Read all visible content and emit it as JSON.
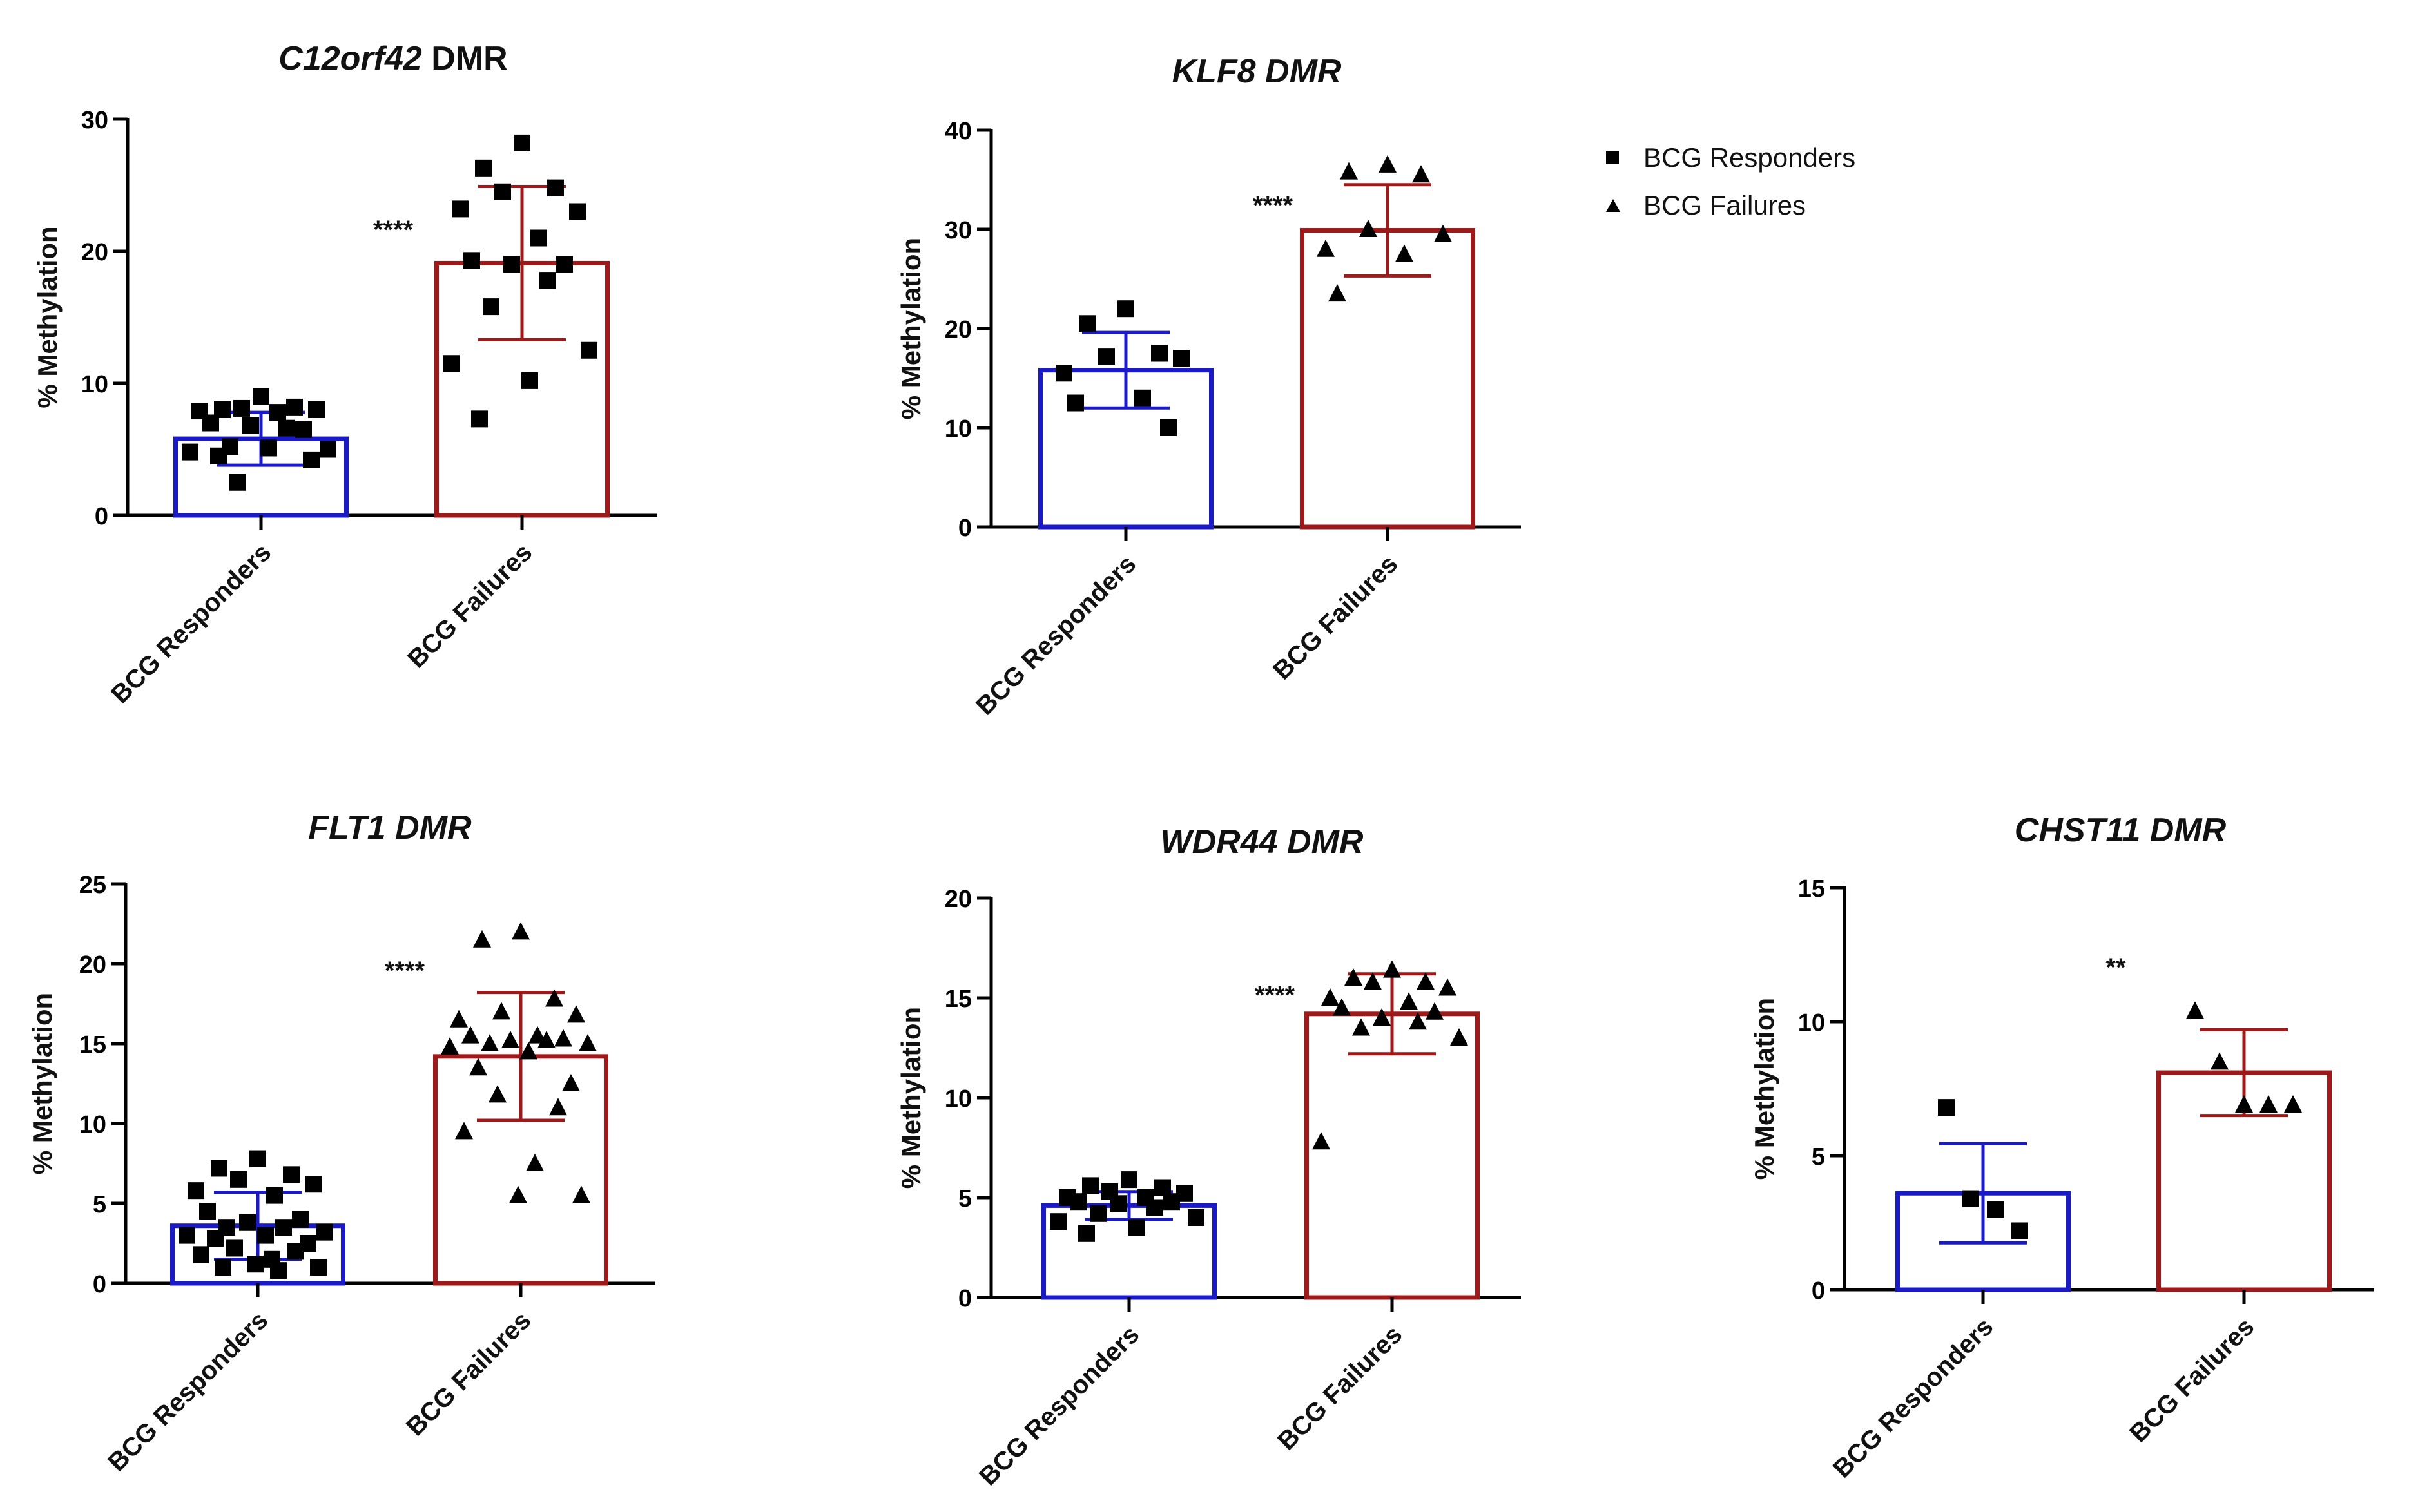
{
  "legend": {
    "responders": "BCG Responders",
    "failures": "BCG Failures"
  },
  "colors": {
    "responders": "#1a1ac8",
    "failures": "#9e1a1a",
    "axis": "#000000"
  },
  "chart_data": [
    {
      "type": "bar",
      "title_gene": "C12orf42",
      "title_suffix": " DMR",
      "title_suffix_italic": false,
      "ylabel": "% Methylation",
      "ylim": [
        0,
        30
      ],
      "yticks": [
        0,
        10,
        20,
        30
      ],
      "categories": [
        "BCG Responders",
        "BCG Failures"
      ],
      "series": [
        {
          "name": "BCG Responders",
          "marker": "square",
          "mean": 5.8,
          "sd": 2.0,
          "points": [
            9.0,
            8.0,
            8.2,
            8.1,
            8.0,
            7.9,
            7.8,
            7.0,
            6.5,
            6.8,
            6.6,
            5.2,
            5.0,
            4.8,
            5.1,
            4.5,
            4.2,
            2.5
          ]
        },
        {
          "name": "BCG Failures",
          "marker": "square",
          "mean": 19.1,
          "sd": 5.8,
          "points": [
            28.2,
            26.3,
            24.8,
            24.5,
            23.0,
            23.2,
            21.0,
            19.3,
            19.0,
            19.0,
            17.8,
            15.8,
            12.5,
            11.5,
            10.2,
            7.3
          ]
        }
      ],
      "significance": "****"
    },
    {
      "type": "bar",
      "title_gene": "KLF8",
      "title_suffix": " DMR",
      "title_suffix_italic": true,
      "ylabel": "% Methylation",
      "ylim": [
        0,
        40
      ],
      "yticks": [
        0,
        10,
        20,
        30,
        40
      ],
      "categories": [
        "BCG Responders",
        "BCG Failures"
      ],
      "series": [
        {
          "name": "BCG Responders",
          "marker": "square",
          "mean": 15.8,
          "sd": 3.8,
          "points": [
            22.0,
            20.5,
            17.5,
            17.2,
            17.0,
            15.5,
            13.0,
            12.5,
            10.0
          ]
        },
        {
          "name": "BCG Failures",
          "marker": "triangle",
          "mean": 29.9,
          "sd": 4.6,
          "points": [
            36.5,
            35.8,
            35.5,
            30.0,
            29.5,
            28.0,
            27.5,
            23.5
          ]
        }
      ],
      "significance": "****"
    },
    {
      "type": "bar",
      "title_gene": "FLT1",
      "title_suffix": "  DMR",
      "title_suffix_italic": true,
      "ylabel": "% Methylation",
      "ylim": [
        0,
        25
      ],
      "yticks": [
        0,
        5,
        10,
        15,
        20,
        25
      ],
      "categories": [
        "BCG Responders",
        "BCG Failures"
      ],
      "series": [
        {
          "name": "BCG Responders",
          "marker": "square",
          "mean": 3.6,
          "sd": 2.1,
          "points": [
            7.8,
            7.2,
            6.8,
            6.5,
            6.2,
            5.8,
            5.5,
            4.5,
            4.0,
            3.8,
            3.5,
            3.5,
            3.2,
            3.0,
            3.0,
            2.8,
            2.5,
            2.2,
            2.0,
            1.8,
            1.5,
            1.2,
            1.0,
            1.0,
            0.8
          ]
        },
        {
          "name": "BCG Failures",
          "marker": "triangle",
          "mean": 14.2,
          "sd": 4.0,
          "points": [
            22.0,
            21.5,
            17.8,
            17.0,
            16.8,
            16.5,
            15.5,
            15.5,
            15.3,
            15.2,
            15.2,
            15.0,
            15.0,
            14.8,
            14.5,
            13.5,
            12.5,
            11.8,
            11.0,
            9.5,
            7.5,
            5.5,
            5.5
          ]
        }
      ],
      "significance": "****"
    },
    {
      "type": "bar",
      "title_gene": "WDR44",
      "title_suffix": " DMR",
      "title_suffix_italic": true,
      "ylabel": "% Methylation",
      "ylim": [
        0,
        20
      ],
      "yticks": [
        0,
        5,
        10,
        15,
        20
      ],
      "categories": [
        "BCG Responders",
        "BCG Failures"
      ],
      "series": [
        {
          "name": "BCG Responders",
          "marker": "square",
          "mean": 4.6,
          "sd": 0.7,
          "points": [
            5.9,
            5.6,
            5.5,
            5.3,
            5.2,
            5.0,
            5.0,
            4.8,
            4.8,
            4.7,
            4.5,
            4.2,
            4.0,
            3.8,
            3.5,
            3.2
          ]
        },
        {
          "name": "BCG Failures",
          "marker": "triangle",
          "mean": 14.2,
          "sd": 2.0,
          "points": [
            16.4,
            16.0,
            15.8,
            15.8,
            15.5,
            15.0,
            14.8,
            14.5,
            14.3,
            14.0,
            13.8,
            13.5,
            13.0,
            7.8
          ]
        }
      ],
      "significance": "****"
    },
    {
      "type": "bar",
      "title_gene": "CHST11",
      "title_suffix": " DMR",
      "title_suffix_italic": true,
      "ylabel": "% Methylation",
      "ylim": [
        0,
        15
      ],
      "yticks": [
        0,
        5,
        10,
        15
      ],
      "categories": [
        "BCG Responders",
        "BCG Failures"
      ],
      "series": [
        {
          "name": "BCG Responders",
          "marker": "square",
          "mean": 3.6,
          "sd": 1.85,
          "points": [
            6.8,
            3.4,
            3.0,
            2.2
          ]
        },
        {
          "name": "BCG Failures",
          "marker": "triangle",
          "mean": 8.1,
          "sd": 1.6,
          "points": [
            10.4,
            8.5,
            6.9,
            6.9,
            6.9
          ]
        }
      ],
      "significance": "**"
    }
  ]
}
